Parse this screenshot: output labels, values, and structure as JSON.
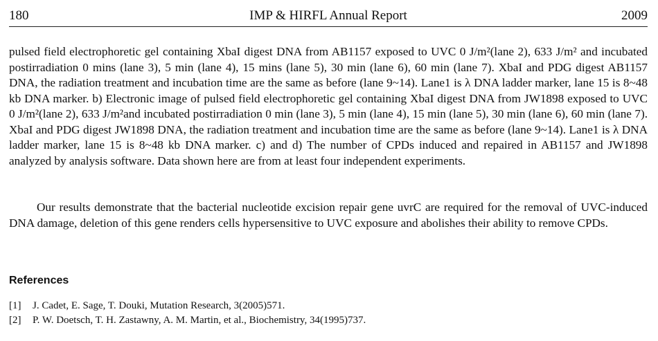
{
  "header": {
    "page_number": "180",
    "running_title": "IMP & HIRFL Annual Report",
    "year": "2009"
  },
  "paragraph_1": "pulsed field electrophoretic gel containing XbaI digest DNA from AB1157 exposed to UVC 0 J/m²(lane 2), 633 J/m² and incubated postirradiation 0 mins (lane 3), 5 min (lane 4), 15 mins (lane 5), 30 min (lane 6), 60 min (lane 7). XbaI and PDG digest AB1157 DNA, the radiation treatment and incubation time are the same as before (lane 9~14). Lane1 is λ DNA ladder marker, lane 15 is 8~48 kb DNA marker. b) Electronic image of pulsed field electrophoretic gel containing XbaI digest DNA from JW1898 exposed to UVC 0 J/m²(lane 2), 633 J/m²and incubated postirradiation 0 min (lane 3), 5 min (lane 4), 15 min (lane 5), 30 min (lane 6), 60 min (lane 7). XbaI and PDG digest JW1898 DNA, the radiation treatment and incubation time are the same as before (lane 9~14). Lane1 is λ DNA ladder marker, lane 15 is 8~48 kb DNA marker. c) and d) The number of CPDs induced and repaired in AB1157 and JW1898 analyzed by analysis software. Data shown here are from at least four independent experiments.",
  "paragraph_2": "Our results demonstrate that the bacterial nucleotide excision repair gene uvrC are required for the removal of UVC-induced DNA damage, deletion of this gene renders cells hypersensitive to UVC exposure and abolishes their ability to remove CPDs.",
  "references": {
    "heading": "References",
    "items": [
      {
        "number": "[1]",
        "text": "J. Cadet, E. Sage, T. Douki, Mutation Research, 3(2005)571."
      },
      {
        "number": "[2]",
        "text": "P. W. Doetsch, T. H. Zastawny, A. M. Martin, et al., Biochemistry, 34(1995)737."
      }
    ]
  }
}
